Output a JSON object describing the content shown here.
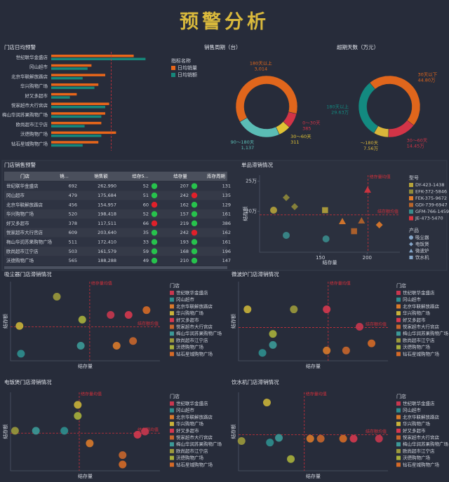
{
  "title": "预警分析",
  "chart_data": [
    {
      "type": "bar",
      "orientation": "horizontal",
      "title": "门店日均预警",
      "categories": [
        "世纪联华金盛店",
        "冈山超市",
        "北京华联解放路店",
        "华兴购物广场",
        "好又多超市",
        "悦家超市大行宫店",
        "梅山华润苏果购物广场",
        "欧尚超市江宁店",
        "沃德购物广场",
        "钻石星城购物广场"
      ],
      "series": [
        {
          "name": "日均销量",
          "color": "#e8661a",
          "values": [
            84,
            41,
            55,
            48,
            26,
            59,
            55,
            51,
            66,
            48
          ]
        },
        {
          "name": "日均销额",
          "color": "#16877a",
          "values": [
            96,
            37,
            32,
            44,
            19,
            55,
            51,
            34,
            51,
            32
          ]
        }
      ],
      "xlim": [
        0,
        100
      ],
      "reference_line": 61,
      "reference_color": "#d0303a",
      "legend_title": "指标名称"
    },
    {
      "type": "pie",
      "donut": true,
      "title": "销售周期（台）",
      "categories": [
        "180天以上",
        "0～30天",
        "30～60天",
        "90～180天"
      ],
      "values": [
        3014,
        385,
        311,
        1137
      ],
      "value_labels": [
        "3,014",
        "385",
        "311",
        "1,137"
      ],
      "colors": [
        "#e0661c",
        "#d23447",
        "#e0c234",
        "#5bbdb5"
      ]
    },
    {
      "type": "pie",
      "donut": true,
      "title": "超期天数（万元）",
      "categories": [
        "180天以上",
        "30天以下",
        "30～60天",
        "～180天"
      ],
      "values": [
        29.63,
        44.8,
        14.45,
        7.56
      ],
      "value_labels": [
        "29.63万",
        "44.80万",
        "14.45万",
        "7.56万"
      ],
      "colors": [
        "#138a80",
        "#e0661c",
        "#d23447",
        "#d9b63a"
      ]
    },
    {
      "type": "scatter",
      "title": "单品滞销情况",
      "x_label": "结存量",
      "y_label": "结存额",
      "xlim": [
        85,
        235
      ],
      "ylim": [
        132000,
        260000
      ],
      "xticks": [
        150,
        200
      ],
      "yticks": [
        {
          "value": 200000,
          "label": "20万"
        },
        {
          "value": 250000,
          "label": "25万"
        }
      ],
      "mean_x": 201,
      "mean_x_label": "结存量均值",
      "mean_y": 194000,
      "mean_y_label": "结存额均值",
      "legend_title": "型号",
      "product_legend_title": "产品",
      "products": [
        {
          "name": "吸尘器",
          "shape": "circle"
        },
        {
          "name": "电饭煲",
          "shape": "diamond"
        },
        {
          "name": "微波炉",
          "shape": "triangle"
        },
        {
          "name": "饮水机",
          "shape": "square"
        }
      ],
      "series": [
        {
          "name": "DY-423-1438",
          "color": "#b5a33a",
          "x": [
            100,
            155
          ],
          "values": [
            201800,
            201800
          ],
          "products": [
            "吸尘器",
            "饮水机"
          ]
        },
        {
          "name": "EFK-372-5846",
          "color": "#8f8a3a",
          "x": [
            113.5,
            122.5
          ],
          "values": [
            222800,
            207600
          ],
          "products": [
            "电饭煲",
            "电饭煲"
          ]
        },
        {
          "name": "FEK-375-9672",
          "color": "#e07b2a",
          "x": [
            173.5,
            213
          ],
          "values": [
            183200,
            177400
          ],
          "products": [
            "微波炉",
            "电饭煲"
          ]
        },
        {
          "name": "GDI-739-6947",
          "color": "#b8652a",
          "x": [
            186,
            194
          ],
          "values": [
            166900,
            184400
          ],
          "products": [
            "饮水机",
            "微波炉"
          ]
        },
        {
          "name": "GFM-766-1459",
          "color": "#3a8c8c",
          "x": [
            113.5,
            156
          ],
          "values": [
            160000,
            154100
          ],
          "products": [
            "吸尘器",
            "吸尘器"
          ]
        },
        {
          "name": "JE-473-5470",
          "color": "#d9343f",
          "x": [
            200.5
          ],
          "values": [
            235600
          ],
          "products": [
            "微波炉"
          ]
        }
      ]
    },
    {
      "type": "scatter",
      "title": "吸尘器门店滞销情况",
      "x_label": "结存量",
      "y_label": "结存额",
      "xlim": [
        0,
        100
      ],
      "ylim": [
        0,
        100
      ],
      "mean_x": 53,
      "mean_x_label": "结存量均值",
      "mean_y": 43,
      "mean_y_label": "结存额均值",
      "legend_title": "门店",
      "series": [
        {
          "name": "世纪联华金盛店",
          "color": "#c8374f",
          "x": [
            67
          ],
          "values": [
            58
          ]
        },
        {
          "name": "冈山超市",
          "color": "#2f8f8f",
          "x": [
            7
          ],
          "values": [
            9
          ]
        },
        {
          "name": "北京华联解放路店",
          "color": "#d97a2b",
          "x": [
            71
          ],
          "values": [
            19
          ]
        },
        {
          "name": "华兴购物广场",
          "color": "#c9b23a",
          "x": [
            6
          ],
          "values": [
            44
          ]
        },
        {
          "name": "好又多超市",
          "color": "#d6384f",
          "x": [
            79
          ],
          "values": [
            58
          ]
        },
        {
          "name": "悦家超市大行宫店",
          "color": "#c8662c",
          "x": [
            82
          ],
          "values": [
            25
          ]
        },
        {
          "name": "梅山华润苏果购物广场",
          "color": "#3c9a98",
          "x": [
            47
          ],
          "values": [
            19
          ]
        },
        {
          "name": "欧尚超市江宁店",
          "color": "#9c9a3c",
          "x": [
            31
          ],
          "values": [
            81
          ]
        },
        {
          "name": "沃德购物广场",
          "color": "#a9b03c",
          "x": [
            48
          ],
          "values": [
            52
          ]
        },
        {
          "name": "钻石星城购物广场",
          "color": "#d56a27",
          "x": [
            91
          ],
          "values": [
            64
          ]
        }
      ]
    },
    {
      "type": "scatter",
      "title": "微波炉门店滞销情况",
      "x_label": "结存量",
      "y_label": "结存额",
      "xlim": [
        0,
        100
      ],
      "ylim": [
        0,
        100
      ],
      "mean_x": 60,
      "mean_x_label": "结存量均值",
      "mean_y": 42,
      "mean_y_label": "结存额均值",
      "legend_title": "门店",
      "series": [
        {
          "name": "世纪联华金盛店",
          "color": "#c8374f",
          "x": [
            81
          ],
          "values": [
            43
          ]
        },
        {
          "name": "冈山超市",
          "color": "#2f8f8f",
          "x": [
            16
          ],
          "values": [
            10
          ]
        },
        {
          "name": "北京华联解放路店",
          "color": "#d97a2b",
          "x": [
            59
          ],
          "values": [
            13
          ]
        },
        {
          "name": "华兴购物广场",
          "color": "#c9b23a",
          "x": [
            6
          ],
          "values": [
            65
          ]
        },
        {
          "name": "好又多超市",
          "color": "#d6384f",
          "x": [
            59
          ],
          "values": [
            65
          ]
        },
        {
          "name": "悦家超市大行宫店",
          "color": "#c8662c",
          "x": [
            72
          ],
          "values": [
            13
          ]
        },
        {
          "name": "梅山华润苏果购物广场",
          "color": "#3c9a98",
          "x": [
            23
          ],
          "values": [
            20
          ]
        },
        {
          "name": "欧尚超市江宁店",
          "color": "#9c9a3c",
          "x": [
            37
          ],
          "values": [
            65
          ]
        },
        {
          "name": "沃德购物广场",
          "color": "#a9b03c",
          "x": [
            23
          ],
          "values": [
            34
          ]
        },
        {
          "name": "钻石星城购物广场",
          "color": "#d56a27",
          "x": [
            89
          ],
          "values": [
            22
          ]
        }
      ]
    },
    {
      "type": "scatter",
      "title": "电饭煲门店滞销情况",
      "x_label": "结存量",
      "y_label": "结存额",
      "xlim": [
        0,
        100
      ],
      "ylim": [
        0,
        100
      ],
      "mean_x": 46,
      "mean_x_label": "结存量均值",
      "mean_y": 48,
      "mean_y_label": "结存额均值",
      "legend_title": "门店",
      "series": [
        {
          "name": "世纪联华金盛店",
          "color": "#c8374f",
          "x": [
            90
          ],
          "values": [
            50
          ]
        },
        {
          "name": "冈山超市",
          "color": "#2f8f8f",
          "x": [
            36
          ],
          "values": [
            51
          ]
        },
        {
          "name": "北京华联解放路店",
          "color": "#d97a2b",
          "x": [
            53
          ],
          "values": [
            35
          ]
        },
        {
          "name": "华兴购物广场",
          "color": "#c9b23a",
          "x": [
            45
          ],
          "values": [
            84
          ]
        },
        {
          "name": "好又多超市",
          "color": "#d6384f",
          "x": [
            85
          ],
          "values": [
            46
          ]
        },
        {
          "name": "悦家超市大行宫店",
          "color": "#c8662c",
          "x": [
            75
          ],
          "values": [
            20
          ]
        },
        {
          "name": "梅山华润苏果购物广场",
          "color": "#3c9a98",
          "x": [
            17
          ],
          "values": [
            51
          ]
        },
        {
          "name": "欧尚超市江宁店",
          "color": "#9c9a3c",
          "x": [
            3
          ],
          "values": [
            51
          ]
        },
        {
          "name": "沃德购物广场",
          "color": "#a9b03c",
          "x": [
            45
          ],
          "values": [
            70
          ]
        },
        {
          "name": "钻石星城购物广场",
          "color": "#d56a27",
          "x": [
            75
          ],
          "values": [
            8
          ]
        }
      ]
    },
    {
      "type": "scatter",
      "title": "饮水机门店滞销情况",
      "x_label": "结存量",
      "y_label": "结存额",
      "xlim": [
        0,
        100
      ],
      "ylim": [
        0,
        100
      ],
      "mean_x": 44,
      "mean_x_label": "结存量均值",
      "mean_y": 46,
      "mean_y_label": "结存额均值",
      "legend_title": "门店",
      "series": [
        {
          "name": "世纪联华金盛店",
          "color": "#c8374f",
          "x": [
            94
          ],
          "values": [
            41
          ]
        },
        {
          "name": "冈山超市",
          "color": "#2f8f8f",
          "x": [
            21
          ],
          "values": [
            36
          ]
        },
        {
          "name": "北京华联解放路店",
          "color": "#d97a2b",
          "x": [
            48
          ],
          "values": [
            41
          ]
        },
        {
          "name": "华兴购物广场",
          "color": "#c9b23a",
          "x": [
            19
          ],
          "values": [
            87
          ]
        },
        {
          "name": "好又多超市",
          "color": "#d6384f",
          "x": [
            77
          ],
          "values": [
            41
          ]
        },
        {
          "name": "悦家超市大行宫店",
          "color": "#c8662c",
          "x": [
            55
          ],
          "values": [
            41
          ]
        },
        {
          "name": "梅山华润苏果购物广场",
          "color": "#3c9a98",
          "x": [
            27
          ],
          "values": [
            42
          ]
        },
        {
          "name": "欧尚超市江宁店",
          "color": "#9c9a3c",
          "x": [
            2
          ],
          "values": [
            38
          ]
        },
        {
          "name": "沃德购物广场",
          "color": "#a9b03c",
          "x": [
            35
          ],
          "values": [
            15
          ]
        },
        {
          "name": "钻石星城购物广场",
          "color": "#d56a27",
          "x": [
            70
          ],
          "values": [
            41
          ]
        }
      ]
    }
  ],
  "table": {
    "title": "门店销售预警",
    "columns": [
      "门店",
      "销...",
      "销售额",
      "结存S...",
      "结存量",
      "库存周期"
    ],
    "rows": [
      [
        "世纪联华金盛店",
        "692",
        "262,990",
        "52",
        "207",
        "131"
      ],
      [
        "冈山超市",
        "479",
        "175,684",
        "51",
        "242",
        "135"
      ],
      [
        "北京华联解放路店",
        "456",
        "154,957",
        "60",
        "162",
        "129"
      ],
      [
        "华兴购物广场",
        "520",
        "198,418",
        "52",
        "157",
        "161"
      ],
      [
        "好又多超市",
        "378",
        "117,511",
        "66",
        "219",
        "386"
      ],
      [
        "悦家超市大行宫店",
        "609",
        "203,640",
        "35",
        "242",
        "162"
      ],
      [
        "梅山华润苏果购物广场",
        "511",
        "172,410",
        "33",
        "193",
        "161"
      ],
      [
        "欧尚超市江宁店",
        "503",
        "161,579",
        "59",
        "168",
        "196"
      ],
      [
        "沃德购物广场",
        "565",
        "188,288",
        "49",
        "210",
        "147"
      ]
    ],
    "status_colors": [
      [
        "#27c24c",
        "#27c24c"
      ],
      [
        "#27c24c",
        "#e0202a"
      ],
      [
        "#e0202a",
        "#27c24c"
      ],
      [
        "#27c24c",
        "#27c24c"
      ],
      [
        "#e0202a",
        "#27c24c"
      ],
      [
        "#27c24c",
        "#e0202a"
      ],
      [
        "#27c24c",
        "#27c24c"
      ],
      [
        "#27c24c",
        "#27c24c"
      ],
      [
        "#27c24c",
        "#27c24c"
      ]
    ]
  }
}
